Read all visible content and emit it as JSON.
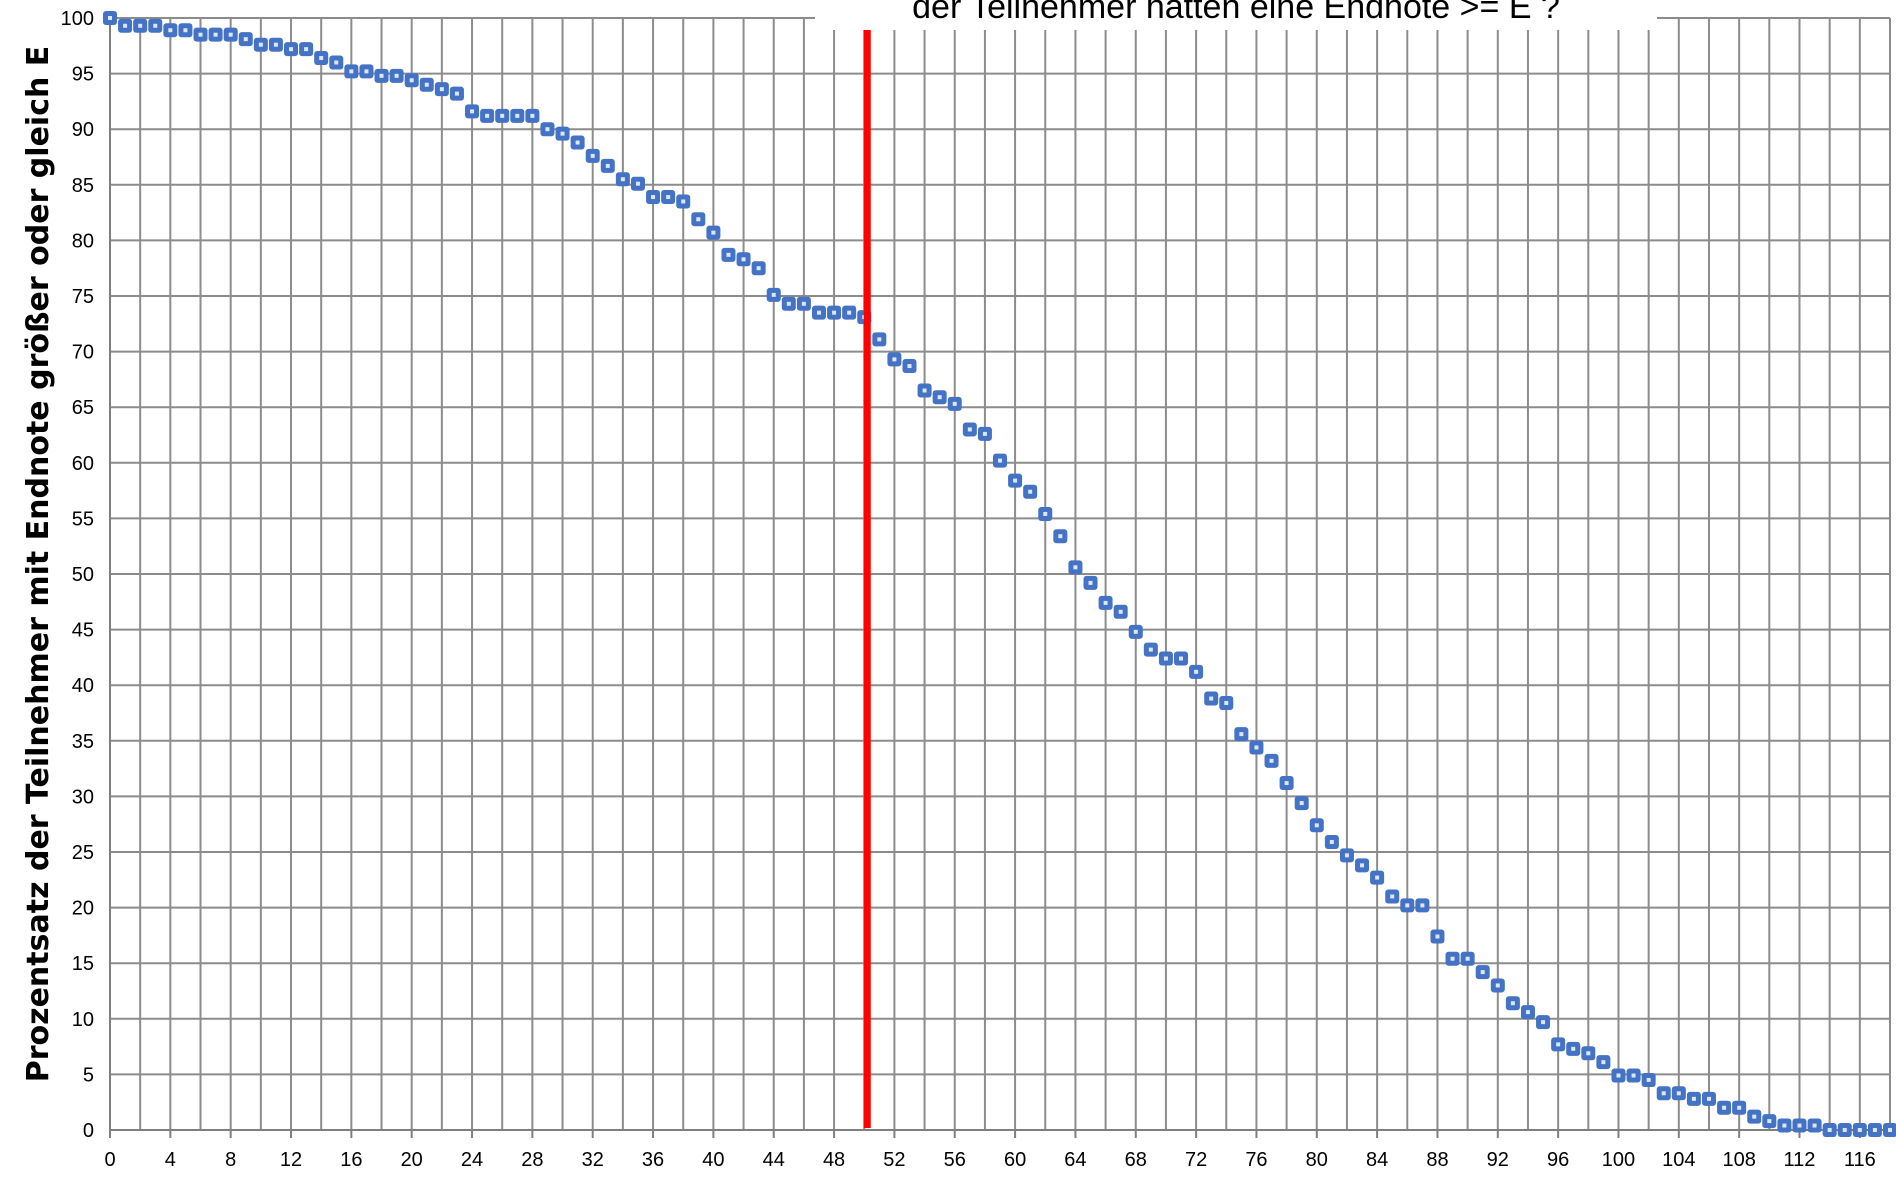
{
  "chart_data": {
    "type": "scatter",
    "title": "der Teilnehmer  hatten eine Endnote >= E ?",
    "xlabel": "",
    "ylabel": "Prozentsatz der Teilnehmer mit Endnote größer oder gleich E",
    "xlim": [
      0,
      118
    ],
    "ylim": [
      0,
      100
    ],
    "xticks": [
      0,
      4,
      8,
      12,
      16,
      20,
      24,
      28,
      32,
      36,
      40,
      44,
      48,
      52,
      56,
      60,
      64,
      68,
      72,
      76,
      80,
      84,
      88,
      92,
      96,
      100,
      104,
      108,
      112,
      116
    ],
    "yticks": [
      0,
      5,
      10,
      15,
      20,
      25,
      30,
      35,
      40,
      45,
      50,
      55,
      60,
      65,
      70,
      75,
      80,
      85,
      90,
      95,
      100
    ],
    "grid": true,
    "marker_color": "#4472C4",
    "reference_line": {
      "x": 50.2,
      "color": "#FF0000"
    },
    "series": [
      {
        "x": [
          0,
          1,
          2,
          3,
          4,
          5,
          6,
          7,
          8,
          9,
          10,
          11,
          12,
          13,
          14,
          15,
          16,
          17,
          18,
          19,
          20,
          21,
          22,
          23,
          24,
          25,
          26,
          27,
          28,
          29,
          30,
          31,
          32,
          33,
          34,
          35,
          36,
          37,
          38,
          39,
          40,
          41,
          42,
          43,
          44,
          45,
          46,
          47,
          48,
          49,
          50,
          51,
          52,
          53,
          54,
          55,
          56,
          57,
          58,
          59,
          60,
          61,
          62,
          63,
          64,
          65,
          66,
          67,
          68,
          69,
          70,
          71,
          72,
          73,
          74,
          75,
          76,
          77,
          78,
          79,
          80,
          81,
          82,
          83,
          84,
          85,
          86,
          87,
          88,
          89,
          90,
          91,
          92,
          93,
          94,
          95,
          96,
          97,
          98,
          99,
          100,
          101,
          102,
          103,
          104,
          105,
          106,
          107,
          108,
          109,
          110,
          111,
          112,
          113,
          114,
          115,
          116,
          117,
          118
        ],
        "y": [
          100,
          99.3,
          99.3,
          99.3,
          98.9,
          98.9,
          98.5,
          98.5,
          98.5,
          98.1,
          97.6,
          97.6,
          97.2,
          97.2,
          96.4,
          96.0,
          95.2,
          95.2,
          94.8,
          94.8,
          94.4,
          94.0,
          93.6,
          93.2,
          91.6,
          91.2,
          91.2,
          91.2,
          91.2,
          90.0,
          89.6,
          88.8,
          87.6,
          86.7,
          85.5,
          85.1,
          83.9,
          83.9,
          83.5,
          81.9,
          80.7,
          78.7,
          78.3,
          77.5,
          75.1,
          74.3,
          74.3,
          73.5,
          73.5,
          73.5,
          73.1,
          71.1,
          69.3,
          68.7,
          66.5,
          65.9,
          65.3,
          63.0,
          62.6,
          60.2,
          58.4,
          57.4,
          55.4,
          53.4,
          50.6,
          49.2,
          47.4,
          46.6,
          44.8,
          43.2,
          42.4,
          42.4,
          41.2,
          38.8,
          38.4,
          35.6,
          34.4,
          33.2,
          31.2,
          29.4,
          27.4,
          25.9,
          24.7,
          23.8,
          22.7,
          21.0,
          20.2,
          20.2,
          17.4,
          15.4,
          15.4,
          14.2,
          13.0,
          11.4,
          10.6,
          9.7,
          7.7,
          7.3,
          6.9,
          6.1,
          4.9,
          4.9,
          4.5,
          3.3,
          3.3,
          2.8,
          2.8,
          2.0,
          2.0,
          1.2,
          0.8,
          0.4,
          0.4,
          0.4,
          0.0,
          0.0,
          0.0,
          0.0,
          0.0
        ]
      }
    ]
  }
}
